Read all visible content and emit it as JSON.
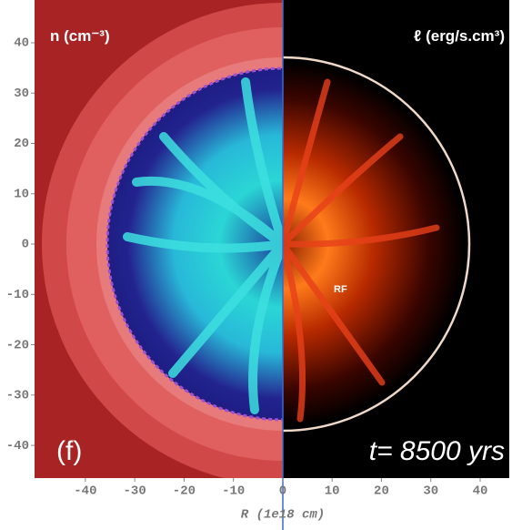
{
  "chart_data": {
    "type": "field",
    "left_label": "n (cm⁻³)",
    "right_label": "ℓ (erg/s.cm³)",
    "panel_label": "(f)",
    "time_label": "t= 8500 yrs",
    "annotation": "RF",
    "xlabel": "R (1e18 cm)",
    "xlim": [
      -50.3,
      45.9
    ],
    "ylim": [
      -46.5,
      48.5
    ],
    "xticks": [
      -40,
      -30,
      -20,
      -10,
      0,
      10,
      20,
      30,
      40
    ],
    "yticks": [
      40,
      30,
      20,
      10,
      0,
      -10,
      -20,
      -30,
      -40
    ]
  }
}
